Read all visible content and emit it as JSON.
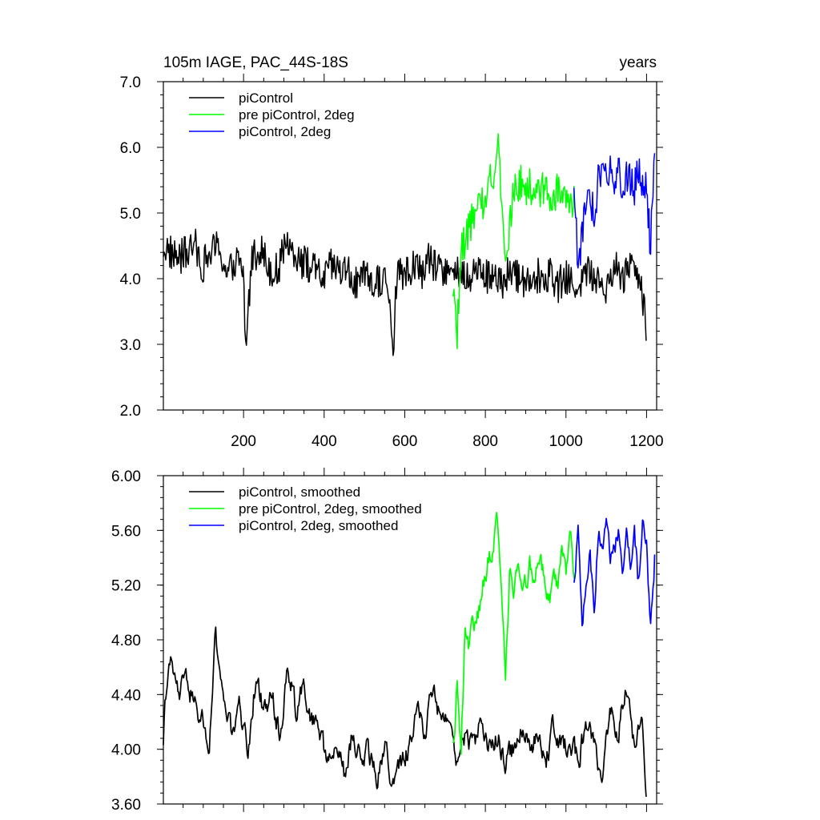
{
  "chart_data": [
    {
      "type": "line",
      "title_left": "105m IAGE, PAC_44S-18S",
      "title_right": "years",
      "xlabel": "",
      "ylabel": "",
      "xlim": [
        1,
        1225
      ],
      "ylim": [
        2.0,
        7.0
      ],
      "xticks": [
        200,
        400,
        600,
        800,
        1000,
        1200
      ],
      "xtick_labels": [
        "200",
        "400",
        "600",
        "800",
        "1000",
        "1200"
      ],
      "yticks": [
        2.0,
        3.0,
        4.0,
        5.0,
        6.0,
        7.0
      ],
      "ytick_labels": [
        "2.0",
        "3.0",
        "4.0",
        "5.0",
        "6.0",
        "7.0"
      ],
      "legend_position": "top-left",
      "legend": [
        "piControl",
        "pre piControl, 2deg",
        "piControl, 2deg"
      ],
      "series": [
        {
          "name": "piControl",
          "color": "#000000",
          "x": [
            1,
            20,
            40,
            60,
            80,
            100,
            120,
            140,
            160,
            180,
            200,
            205,
            220,
            240,
            260,
            280,
            300,
            320,
            340,
            360,
            380,
            400,
            420,
            440,
            460,
            480,
            500,
            520,
            540,
            560,
            570,
            580,
            600,
            620,
            640,
            660,
            680,
            700,
            720,
            740,
            760,
            780,
            800,
            820,
            840,
            860,
            880,
            900,
            920,
            940,
            960,
            980,
            1000,
            1020,
            1040,
            1060,
            1080,
            1100,
            1120,
            1140,
            1160,
            1180,
            1195,
            1200
          ],
          "values": [
            4.5,
            4.4,
            4.3,
            4.4,
            4.5,
            4.2,
            4.4,
            4.5,
            4.0,
            4.3,
            4.1,
            2.9,
            4.3,
            4.5,
            4.2,
            4.1,
            4.4,
            4.5,
            4.3,
            4.2,
            4.1,
            4.0,
            4.2,
            4.1,
            4.1,
            3.9,
            4.0,
            3.9,
            4.0,
            3.9,
            2.8,
            4.0,
            4.1,
            4.2,
            4.1,
            4.3,
            4.1,
            4.2,
            4.0,
            4.1,
            4.0,
            4.2,
            4.0,
            4.1,
            3.9,
            4.1,
            4.0,
            4.0,
            4.1,
            4.0,
            4.1,
            3.9,
            4.0,
            3.9,
            4.0,
            4.1,
            4.0,
            3.9,
            4.2,
            4.0,
            4.3,
            4.0,
            3.6,
            3.1
          ]
        },
        {
          "name": "pre piControl, 2deg",
          "color": "#00ff00",
          "x": [
            720,
            730,
            740,
            750,
            760,
            770,
            780,
            790,
            800,
            810,
            820,
            830,
            840,
            850,
            860,
            870,
            880,
            890,
            900,
            910,
            920,
            930,
            940,
            950,
            960,
            970,
            980,
            990,
            1000,
            1010,
            1020
          ],
          "values": [
            4.0,
            3.2,
            4.4,
            4.6,
            4.8,
            4.9,
            5.0,
            5.1,
            5.3,
            5.5,
            5.6,
            6.3,
            5.2,
            4.2,
            4.8,
            5.4,
            5.3,
            5.5,
            5.2,
            5.4,
            5.3,
            5.4,
            5.3,
            5.5,
            5.1,
            5.2,
            5.4,
            5.1,
            5.3,
            5.0,
            5.3
          ]
        },
        {
          "name": "piControl, 2deg",
          "color": "#0000ff",
          "x": [
            1020,
            1030,
            1040,
            1050,
            1060,
            1070,
            1080,
            1090,
            1100,
            1110,
            1120,
            1130,
            1140,
            1150,
            1160,
            1170,
            1180,
            1190,
            1200,
            1210,
            1220
          ],
          "values": [
            5.2,
            4.3,
            4.6,
            5.3,
            5.4,
            4.8,
            5.5,
            5.8,
            5.4,
            5.6,
            5.5,
            5.7,
            5.3,
            5.6,
            5.5,
            5.4,
            5.7,
            5.5,
            5.3,
            4.5,
            5.8
          ]
        }
      ]
    },
    {
      "type": "line",
      "title_left": "",
      "title_right": "",
      "xlabel": "",
      "ylabel": "",
      "xlim": [
        1,
        1225
      ],
      "ylim": [
        3.6,
        6.0
      ],
      "xticks": [
        200,
        400,
        600,
        800,
        1000,
        1200
      ],
      "xtick_labels": [],
      "yticks": [
        3.6,
        4.0,
        4.4,
        4.8,
        5.2,
        5.6,
        6.0
      ],
      "ytick_labels": [
        "3.60",
        "4.00",
        "4.40",
        "4.80",
        "5.20",
        "5.60",
        "6.00"
      ],
      "legend_position": "top-left",
      "legend": [
        "piControl, smoothed",
        "pre piControl, 2deg, smoothed",
        "piControl, 2deg, smoothed"
      ],
      "series": [
        {
          "name": "piControl, smoothed",
          "color": "#000000",
          "x": [
            1,
            10,
            20,
            40,
            60,
            80,
            100,
            115,
            130,
            150,
            170,
            190,
            210,
            230,
            250,
            270,
            290,
            310,
            330,
            350,
            370,
            390,
            410,
            430,
            450,
            470,
            490,
            510,
            530,
            550,
            570,
            590,
            610,
            630,
            650,
            670,
            690,
            710,
            730,
            750,
            770,
            790,
            810,
            830,
            850,
            870,
            890,
            910,
            930,
            950,
            970,
            990,
            1010,
            1030,
            1050,
            1070,
            1090,
            1110,
            1130,
            1150,
            1170,
            1190,
            1200
          ],
          "values": [
            4.1,
            4.55,
            4.6,
            4.4,
            4.5,
            4.3,
            4.2,
            4.0,
            4.8,
            4.4,
            4.1,
            4.3,
            4.0,
            4.5,
            4.3,
            4.4,
            4.1,
            4.6,
            4.3,
            4.5,
            4.2,
            4.1,
            3.9,
            4.0,
            3.8,
            4.1,
            3.9,
            4.0,
            3.8,
            4.0,
            3.75,
            3.9,
            4.0,
            4.3,
            4.1,
            4.5,
            4.2,
            4.3,
            3.9,
            4.1,
            4.0,
            4.2,
            4.0,
            4.1,
            3.9,
            4.0,
            4.2,
            4.0,
            4.1,
            3.9,
            4.2,
            4.0,
            4.1,
            3.9,
            4.2,
            4.0,
            3.8,
            4.3,
            4.1,
            4.5,
            4.0,
            4.2,
            3.7
          ]
        },
        {
          "name": "pre piControl, 2deg, smoothed",
          "color": "#00ff00",
          "x": [
            720,
            730,
            740,
            750,
            760,
            770,
            780,
            790,
            800,
            810,
            820,
            830,
            840,
            850,
            860,
            870,
            880,
            890,
            900,
            910,
            920,
            930,
            940,
            950,
            960,
            970,
            980,
            990,
            1000,
            1010,
            1020
          ],
          "values": [
            4.0,
            4.5,
            4.05,
            4.9,
            4.75,
            4.9,
            5.0,
            5.1,
            5.3,
            5.4,
            5.5,
            5.7,
            5.2,
            4.6,
            5.3,
            5.2,
            5.4,
            5.3,
            5.2,
            5.4,
            5.2,
            5.45,
            5.3,
            5.2,
            5.1,
            5.35,
            5.2,
            5.5,
            5.3,
            5.6,
            5.25
          ]
        },
        {
          "name": "piControl, 2deg, smoothed",
          "color": "#0000ff",
          "x": [
            1020,
            1030,
            1040,
            1050,
            1060,
            1070,
            1080,
            1090,
            1100,
            1110,
            1120,
            1130,
            1140,
            1150,
            1160,
            1170,
            1180,
            1190,
            1200,
            1210,
            1220
          ],
          "values": [
            5.2,
            5.6,
            4.85,
            5.3,
            5.5,
            4.9,
            5.6,
            5.5,
            5.7,
            5.4,
            5.5,
            5.6,
            5.3,
            5.7,
            5.4,
            5.6,
            5.2,
            5.7,
            5.5,
            4.85,
            5.4
          ]
        }
      ]
    }
  ]
}
